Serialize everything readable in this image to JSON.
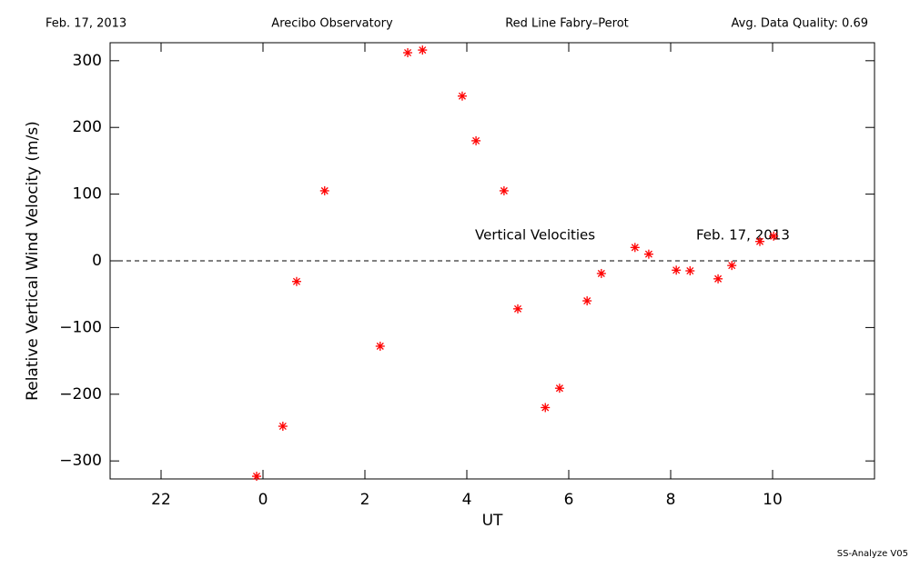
{
  "chart_data": {
    "type": "scatter",
    "header": [
      "Feb. 17, 2013",
      "Arecibo Observatory",
      "Red Line Fabry–Perot",
      "Avg. Data Quality: 0.69"
    ],
    "xlabel": "UT",
    "ylabel": "Relative Vertical Wind Velocity (m/s)",
    "annotations": [
      "Vertical Velocities",
      "Feb. 17, 2013"
    ],
    "footer": "SS-Analyze V05",
    "x": [
      -0.125,
      0.39,
      0.66,
      1.21,
      2.3,
      2.84,
      3.13,
      3.91,
      4.18,
      4.73,
      5.0,
      5.54,
      5.82,
      6.36,
      6.64,
      7.3,
      7.57,
      8.11,
      8.38,
      8.93,
      9.2,
      9.75,
      10.02
    ],
    "values": [
      -323,
      -248,
      -31,
      105,
      -128,
      312,
      316,
      247,
      180,
      105,
      -72,
      -220,
      -191,
      -60,
      -19,
      20,
      10,
      -14,
      -15,
      -27,
      -7,
      29,
      37
    ],
    "color": "#ff0000",
    "xlim": [
      -3,
      12
    ],
    "xticks": [
      {
        "value": -2,
        "label": "22"
      },
      0,
      2,
      4,
      6,
      8,
      10
    ],
    "ylim": [
      -327,
      327
    ],
    "yticks": [
      {
        "value": -300,
        "label": "−300"
      },
      {
        "value": -200,
        "label": "−200"
      },
      {
        "value": -100,
        "label": "−100"
      },
      0,
      100,
      200,
      300
    ],
    "hline": 0
  }
}
